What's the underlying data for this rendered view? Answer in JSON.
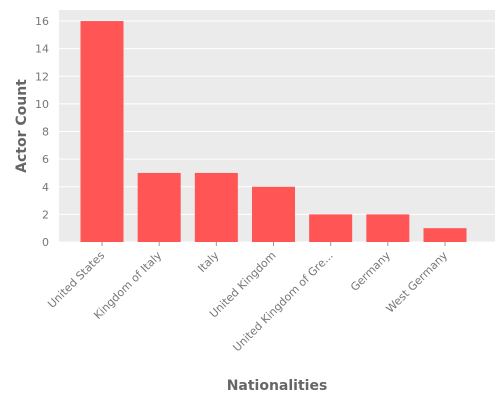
{
  "chart_data": {
    "type": "bar",
    "title": "",
    "xlabel": "Nationalities",
    "ylabel": "Actor Count",
    "categories": [
      "United States",
      "Kingdom of Italy",
      "Italy",
      "United Kingdom",
      "United Kingdom of Gre...",
      "Germany",
      "West Germany"
    ],
    "values": [
      16,
      5,
      5,
      4,
      2,
      2,
      1
    ],
    "ylim": [
      0,
      16.8
    ],
    "yticks": [
      0,
      2,
      4,
      6,
      8,
      10,
      12,
      14,
      16
    ],
    "grid": true,
    "legend": "none"
  },
  "colors": {
    "bar": "#ff5555",
    "plot_background": "#ebebeb",
    "grid": "#ffffff",
    "text": "#777777"
  }
}
